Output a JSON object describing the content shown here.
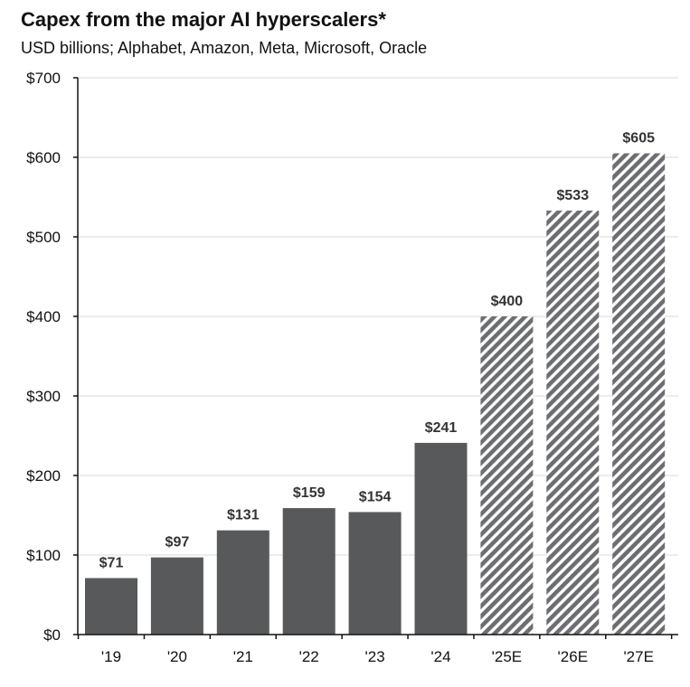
{
  "chart_data": {
    "type": "bar",
    "title": "Capex from the major AI hyperscalers*",
    "subtitle": "USD billions; Alphabet, Amazon, Meta, Microsoft, Oracle",
    "xlabel": "",
    "ylabel": "",
    "categories": [
      "'19",
      "'20",
      "'21",
      "'22",
      "'23",
      "'24",
      "'25E",
      "'26E",
      "'27E"
    ],
    "values": [
      71,
      97,
      131,
      159,
      154,
      241,
      400,
      533,
      605
    ],
    "data_labels": [
      "$71",
      "$97",
      "$131",
      "$159",
      "$154",
      "$241",
      "$400",
      "$533",
      "$605"
    ],
    "estimated": [
      false,
      false,
      false,
      false,
      false,
      false,
      true,
      true,
      true
    ],
    "ylim": [
      0,
      700
    ],
    "yticks": [
      0,
      100,
      200,
      300,
      400,
      500,
      600,
      700
    ],
    "ytick_labels": [
      "$0",
      "$100",
      "$200",
      "$300",
      "$400",
      "$500",
      "$600",
      "$700"
    ],
    "grid": true,
    "colors": {
      "actual": "#58595b",
      "estimate_stripe": "#6d6e71",
      "grid": "#d9d9d9",
      "axis": "#111111"
    }
  }
}
